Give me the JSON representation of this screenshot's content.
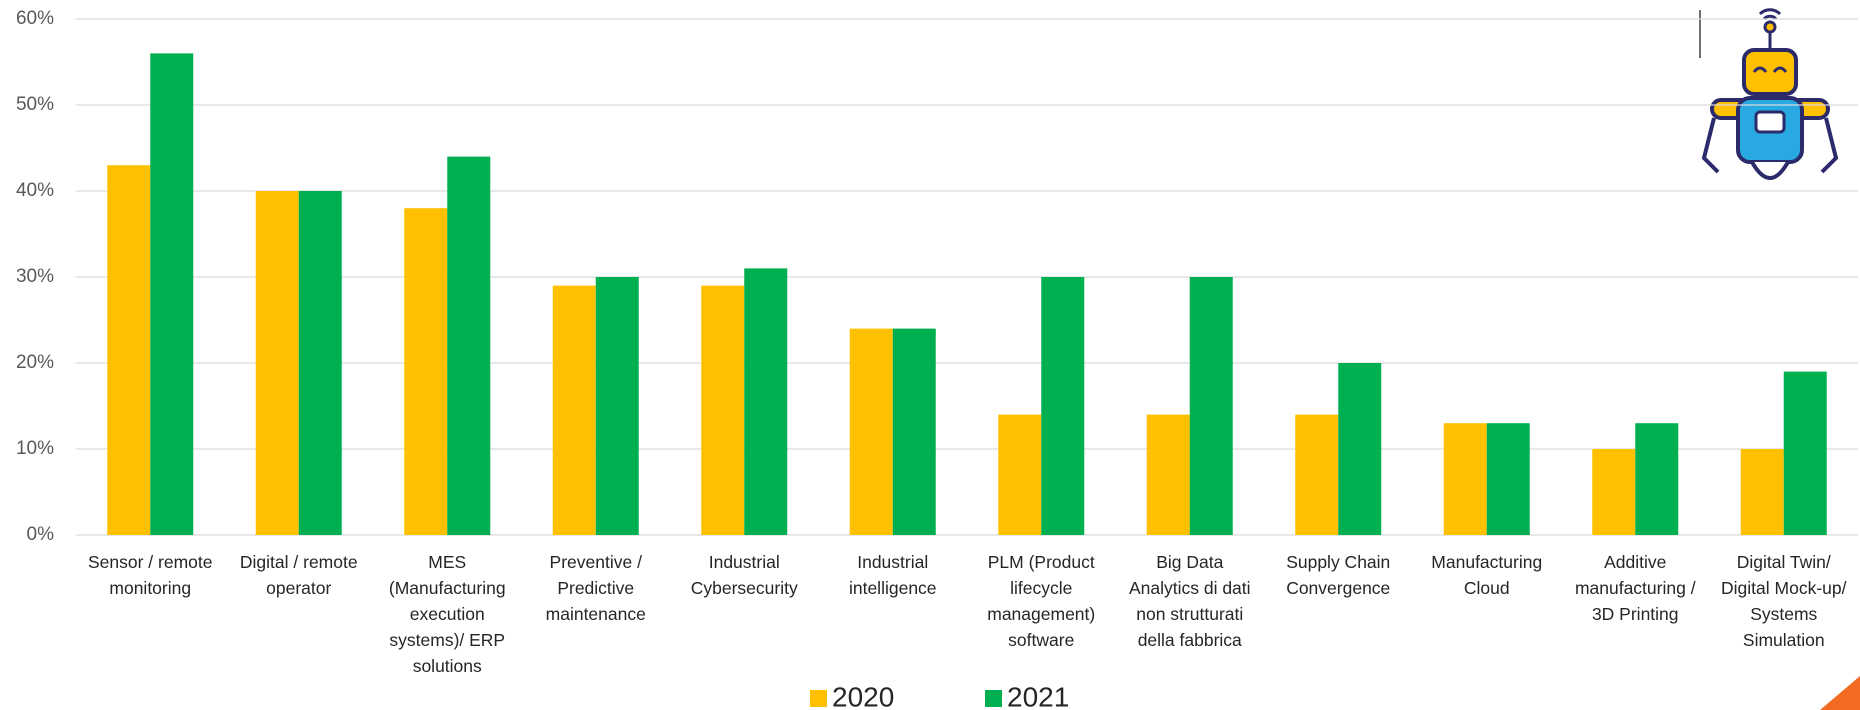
{
  "chart_data": {
    "type": "bar",
    "categories": [
      "Sensor / remote\nmonitoring",
      "Digital / remote\noperator",
      "MES\n(Manufacturing\nexecution\nsystems)/ ERP\nsolutions",
      "Preventive /\nPredictive\nmaintenance",
      "Industrial\nCybersecurity",
      "Industrial\nintelligence",
      "PLM (Product\nlifecycle\nmanagement)\nsoftware",
      "Big Data\nAnalytics di dati\nnon strutturati\ndella fabbrica",
      "Supply Chain\nConvergence",
      "Manufacturing\nCloud",
      "Additive\nmanufacturing /\n3D Printing",
      "Digital Twin/\nDigital Mock-up/\nSystems\nSimulation"
    ],
    "series": [
      {
        "name": "2020",
        "color": "#FFC000",
        "values": [
          43,
          40,
          38,
          29,
          29,
          24,
          14,
          14,
          14,
          13,
          10,
          10
        ]
      },
      {
        "name": "2021",
        "color": "#00B050",
        "values": [
          56,
          40,
          44,
          30,
          31,
          24,
          30,
          30,
          20,
          13,
          13,
          19
        ]
      }
    ],
    "ylim": [
      0,
      60
    ],
    "yticks": [
      {
        "value": 0,
        "label": "0%"
      },
      {
        "value": 10,
        "label": "10%"
      },
      {
        "value": 20,
        "label": "20%"
      },
      {
        "value": 30,
        "label": "30%"
      },
      {
        "value": 40,
        "label": "40%"
      },
      {
        "value": 50,
        "label": "50%"
      },
      {
        "value": 60,
        "label": "60%"
      }
    ],
    "grid": true,
    "legend": "bottom"
  }
}
